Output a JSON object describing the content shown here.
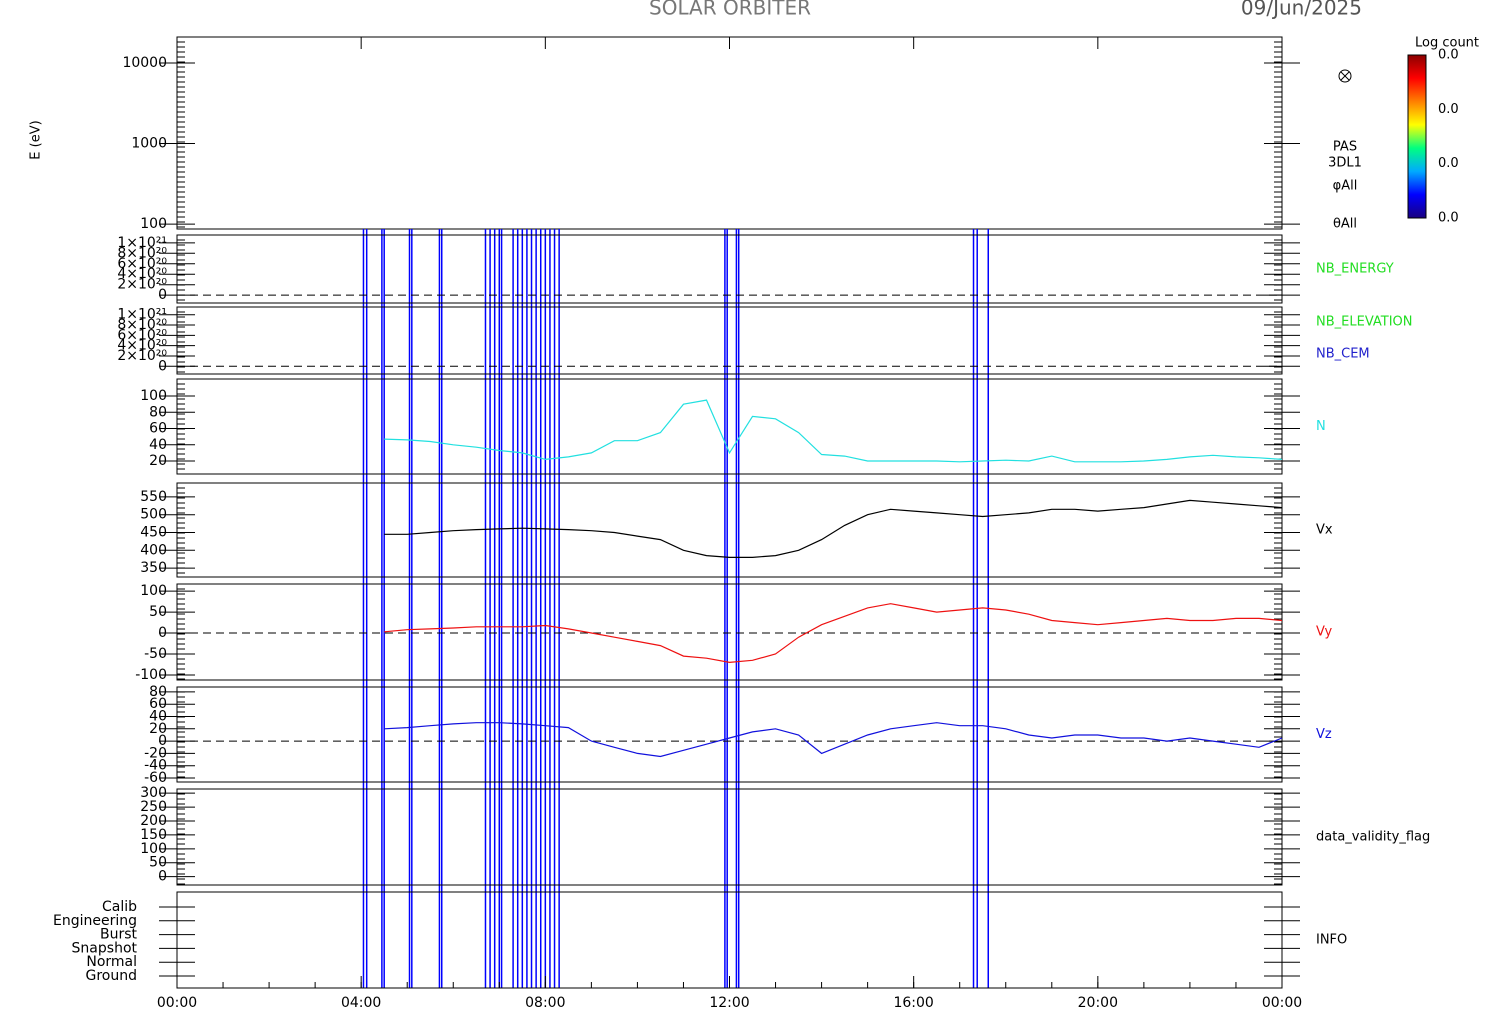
{
  "title": "SOLAR ORBITER",
  "date": "09/Jun/2025",
  "chart_data": [
    {
      "type": "spectrogram",
      "ylabel": "E (eV)",
      "log_y": true,
      "ylim": [
        87,
        21000
      ],
      "yticks": [
        100,
        1000,
        10000
      ],
      "side_labels": [
        "PAS",
        "3DL1",
        "φAll",
        "θAll"
      ],
      "colorbar": {
        "label": "Log count",
        "tick_labels": [
          "0.0",
          "0.0",
          "0.0",
          "0.0"
        ]
      },
      "events": [
        4.05,
        4.12,
        4.45,
        4.5,
        5.05,
        5.1,
        5.7,
        5.75,
        6.7,
        6.8,
        6.9,
        7.0,
        7.05,
        7.3,
        7.4,
        7.5,
        7.6,
        7.7,
        7.8,
        7.9,
        8.0,
        8.1,
        8.2,
        8.3,
        11.9,
        11.95,
        12.15,
        12.2,
        17.3,
        17.38,
        17.62
      ],
      "event_color": "#0000ff"
    },
    {
      "type": "line",
      "side_labels": [
        "NB_ENERGY"
      ],
      "side_label_colors": [
        "#22dd22"
      ],
      "ylim": [
        -1.5e+20,
        1.15e+21
      ],
      "yticks": [
        0,
        {
          "value": 2e+20,
          "label": "2×10²⁰"
        },
        {
          "value": 4e+20,
          "label": "4×10²⁰"
        },
        {
          "value": 6e+20,
          "label": "6×10²⁰"
        },
        {
          "value": 8e+20,
          "label": "8×10²⁰"
        },
        {
          "value": 1e+21,
          "label": "1×10²¹"
        }
      ],
      "zero_line": true,
      "series": []
    },
    {
      "type": "line",
      "side_labels": [
        "NB_ELEVATION",
        "NB_CEM"
      ],
      "side_label_colors": [
        "#22dd22",
        "#2222cc"
      ],
      "ylim": [
        -1.5e+20,
        1.15e+21
      ],
      "yticks": [
        0,
        {
          "value": 2e+20,
          "label": "2×10²⁰"
        },
        {
          "value": 4e+20,
          "label": "4×10²⁰"
        },
        {
          "value": 6e+20,
          "label": "6×10²⁰"
        },
        {
          "value": 8e+20,
          "label": "8×10²⁰"
        },
        {
          "value": 1e+21,
          "label": "1×10²¹"
        }
      ],
      "zero_line": true,
      "series": []
    },
    {
      "type": "line",
      "ylim": [
        4,
        121
      ],
      "yticks": [
        20,
        40,
        60,
        80,
        100
      ],
      "x": [
        4.5,
        5,
        5.5,
        6,
        6.5,
        7,
        7.5,
        8,
        8.5,
        9,
        9.5,
        10,
        10.5,
        11,
        11.5,
        12,
        12.5,
        13,
        13.5,
        14,
        14.5,
        15,
        15.5,
        16,
        16.5,
        17,
        17.5,
        18,
        18.5,
        19,
        19.5,
        20,
        20.5,
        21,
        21.5,
        22,
        22.5,
        23,
        23.5,
        24
      ],
      "series": [
        {
          "name": "N",
          "color": "#22e0e0",
          "values": [
            47,
            46,
            44,
            40,
            37,
            33,
            30,
            22,
            25,
            30,
            45,
            45,
            55,
            90,
            95,
            30,
            75,
            72,
            55,
            28,
            26,
            20,
            20,
            20,
            20,
            19,
            20,
            21,
            20,
            26,
            19,
            19,
            19,
            20,
            22,
            25,
            27,
            25,
            24,
            22
          ]
        }
      ]
    },
    {
      "type": "line",
      "ylim": [
        325,
        589
      ],
      "yticks": [
        350,
        400,
        450,
        500,
        550
      ],
      "x": [
        4.5,
        5,
        5.5,
        6,
        6.5,
        7,
        7.5,
        8,
        8.5,
        9,
        9.5,
        10,
        10.5,
        11,
        11.5,
        12,
        12.5,
        13,
        13.5,
        14,
        14.5,
        15,
        15.5,
        16,
        16.5,
        17,
        17.5,
        18,
        18.5,
        19,
        19.5,
        20,
        20.5,
        21,
        21.5,
        22,
        22.5,
        23,
        23.5,
        24
      ],
      "series": [
        {
          "name": "Vx",
          "color": "#000000",
          "values": [
            445,
            445,
            450,
            455,
            458,
            460,
            462,
            460,
            458,
            455,
            450,
            440,
            430,
            400,
            385,
            380,
            380,
            385,
            400,
            430,
            470,
            500,
            515,
            510,
            505,
            500,
            495,
            500,
            505,
            515,
            515,
            510,
            515,
            520,
            530,
            540,
            535,
            530,
            525,
            520
          ]
        }
      ]
    },
    {
      "type": "line",
      "ylim": [
        -112,
        117
      ],
      "yticks": [
        -100,
        -50,
        0,
        50,
        100
      ],
      "zero_line": true,
      "x": [
        4.5,
        5,
        5.5,
        6,
        6.5,
        7,
        7.5,
        8,
        8.5,
        9,
        9.5,
        10,
        10.5,
        11,
        11.5,
        12,
        12.5,
        13,
        13.5,
        14,
        14.5,
        15,
        15.5,
        16,
        16.5,
        17,
        17.5,
        18,
        18.5,
        19,
        19.5,
        20,
        20.5,
        21,
        21.5,
        22,
        22.5,
        23,
        23.5,
        24
      ],
      "series": [
        {
          "name": "Vy",
          "color": "#ee1111",
          "values": [
            3,
            8,
            10,
            12,
            15,
            15,
            15,
            18,
            10,
            0,
            -10,
            -20,
            -30,
            -55,
            -60,
            -70,
            -65,
            -50,
            -10,
            20,
            40,
            60,
            70,
            60,
            50,
            55,
            60,
            55,
            45,
            30,
            25,
            20,
            25,
            30,
            35,
            30,
            30,
            35,
            35,
            30
          ]
        }
      ]
    },
    {
      "type": "line",
      "ylim": [
        -66.5,
        88
      ],
      "yticks": [
        -60,
        -40,
        -20,
        0,
        20,
        40,
        60,
        80
      ],
      "zero_line": true,
      "x": [
        4.5,
        5,
        5.5,
        6,
        6.5,
        7,
        7.5,
        8,
        8.5,
        9,
        9.5,
        10,
        10.5,
        11,
        11.5,
        12,
        12.5,
        13,
        13.5,
        14,
        14.5,
        15,
        15.5,
        16,
        16.5,
        17,
        17.5,
        18,
        18.5,
        19,
        19.5,
        20,
        20.5,
        21,
        21.5,
        22,
        22.5,
        23,
        23.5,
        24
      ],
      "series": [
        {
          "name": "Vz",
          "color": "#1111dd",
          "values": [
            20,
            22,
            25,
            28,
            30,
            30,
            28,
            25,
            22,
            0,
            -10,
            -20,
            -25,
            -15,
            -5,
            5,
            15,
            20,
            10,
            -20,
            -5,
            10,
            20,
            25,
            30,
            25,
            25,
            20,
            10,
            5,
            10,
            10,
            5,
            5,
            0,
            5,
            0,
            -5,
            -10,
            5
          ]
        }
      ]
    },
    {
      "type": "line",
      "side_labels": [
        "data_validity_flag"
      ],
      "side_label_colors": [
        "#000000"
      ],
      "ylim": [
        -30,
        315
      ],
      "yticks": [
        0,
        50,
        100,
        150,
        200,
        250,
        300
      ],
      "series": []
    },
    {
      "type": "category",
      "side_labels": [
        "INFO"
      ],
      "side_label_colors": [
        "#000000"
      ],
      "categories": [
        "Calib",
        "Engineering",
        "Burst",
        "Snapshot",
        "Normal",
        "Ground"
      ],
      "xlim": [
        0,
        24
      ],
      "xticks": [
        {
          "value": 0,
          "label": "00:00"
        },
        {
          "value": 4,
          "label": "04:00"
        },
        {
          "value": 8,
          "label": "08:00"
        },
        {
          "value": 12,
          "label": "12:00"
        },
        {
          "value": 16,
          "label": "16:00"
        },
        {
          "value": 20,
          "label": "20:00"
        },
        {
          "value": 24,
          "label": "00:00"
        }
      ]
    }
  ]
}
